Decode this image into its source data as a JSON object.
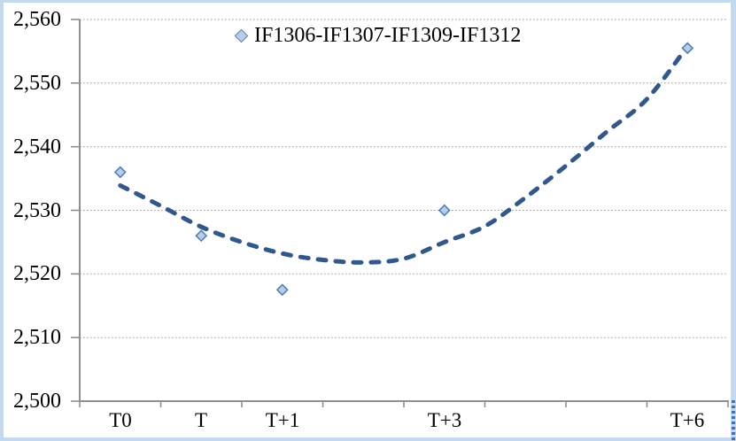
{
  "chart_data": {
    "type": "scatter",
    "title": "",
    "series_label": "IF1306-IF1307-IF1309-IF1312",
    "legend_position": "top-center",
    "grid": "horizontal-dotted",
    "categories": [
      "T0",
      "T",
      "T+1",
      "",
      "T+3",
      "",
      "",
      "T+6"
    ],
    "points": [
      {
        "category": "T0",
        "pos": 0.5,
        "value": 2536
      },
      {
        "category": "T",
        "pos": 1.5,
        "value": 2526
      },
      {
        "category": "T+1",
        "pos": 2.5,
        "value": 2517.5
      },
      {
        "category": "T+3",
        "pos": 4.5,
        "value": 2530
      },
      {
        "category": "T+6",
        "pos": 7.5,
        "value": 2555.5
      }
    ],
    "trendline": {
      "style": "dashed",
      "points": [
        [
          0.5,
          2533.9
        ],
        [
          1.0,
          2530.7
        ],
        [
          1.5,
          2527.4
        ],
        [
          2.0,
          2525.0
        ],
        [
          2.5,
          2523.2
        ],
        [
          3.0,
          2522.2
        ],
        [
          3.5,
          2521.8
        ],
        [
          4.0,
          2522.4
        ],
        [
          4.5,
          2525.0
        ],
        [
          5.0,
          2527.5
        ],
        [
          5.5,
          2532.0
        ],
        [
          6.0,
          2537.0
        ],
        [
          6.5,
          2542.3
        ],
        [
          7.0,
          2547.5
        ],
        [
          7.5,
          2555.8
        ]
      ]
    },
    "y_axis": {
      "min": 2500,
      "max": 2560,
      "step": 10,
      "tick_labels": [
        "2,560",
        "2,550",
        "2,540",
        "2,530",
        "2,520",
        "2,510",
        "2,500"
      ]
    },
    "x_axis": {
      "segments": 8,
      "labels": [
        {
          "pos": 0.5,
          "text": "T0"
        },
        {
          "pos": 1.5,
          "text": "T"
        },
        {
          "pos": 2.5,
          "text": "T+1"
        },
        {
          "pos": 4.5,
          "text": "T+3"
        },
        {
          "pos": 7.5,
          "text": "T+6"
        }
      ]
    }
  },
  "colors": {
    "marker_fill": "#b9cde5",
    "marker_stroke": "#4f81bd",
    "trendline": "#31588c",
    "gridline": "#9a9a9a",
    "axis": "#8f8f8f",
    "text": "#000000",
    "frame_border": "#c3d9ef",
    "edge_artifact": "#4574a9"
  }
}
